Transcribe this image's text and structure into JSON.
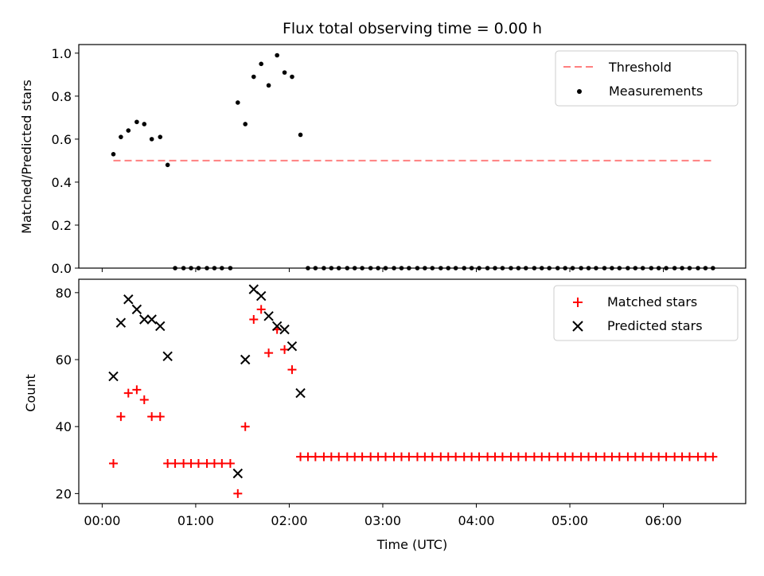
{
  "chart_data": [
    {
      "type": "scatter",
      "title": "Flux total observing time = 0.00 h",
      "xlabel": "",
      "ylabel": "Matched/Predicted stars",
      "xlim": [
        -0.25,
        6.88
      ],
      "ylim": [
        0.0,
        1.04
      ],
      "yticks": [
        "0.0",
        "0.2",
        "0.4",
        "0.6",
        "0.8",
        "1.0"
      ],
      "ytick_values": [
        0.0,
        0.2,
        0.4,
        0.6,
        0.8,
        1.0
      ],
      "legend": {
        "position": "upper right",
        "entries": [
          "Threshold",
          "Measurements"
        ]
      },
      "series": [
        {
          "name": "Threshold",
          "kind": "dashed-line",
          "color": "#ff8080",
          "x": [
            0.12,
            6.55
          ],
          "y": [
            0.5,
            0.5
          ]
        },
        {
          "name": "Measurements",
          "kind": "dot",
          "color": "#000000",
          "x": [
            0.12,
            0.2,
            0.28,
            0.37,
            0.45,
            0.53,
            0.62,
            0.7,
            0.78,
            0.87,
            0.95,
            1.03,
            1.12,
            1.2,
            1.28,
            1.37,
            1.45,
            1.53,
            1.62,
            1.7,
            1.78,
            1.87,
            1.95,
            2.03,
            2.12,
            2.2,
            2.28,
            2.37,
            2.45,
            2.53,
            2.62,
            2.7,
            2.78,
            2.87,
            2.95,
            3.03,
            3.12,
            3.2,
            3.28,
            3.37,
            3.45,
            3.53,
            3.62,
            3.7,
            3.78,
            3.87,
            3.95,
            4.03,
            4.12,
            4.2,
            4.28,
            4.37,
            4.45,
            4.53,
            4.62,
            4.7,
            4.78,
            4.87,
            4.95,
            5.03,
            5.12,
            5.2,
            5.28,
            5.37,
            5.45,
            5.53,
            5.62,
            5.7,
            5.78,
            5.87,
            5.95,
            6.03,
            6.12,
            6.2,
            6.28,
            6.37,
            6.45,
            6.53
          ],
          "y": [
            0.53,
            0.61,
            0.64,
            0.68,
            0.67,
            0.6,
            0.61,
            0.48,
            0,
            0,
            0,
            0,
            0,
            0,
            0,
            0,
            0.77,
            0.67,
            0.89,
            0.95,
            0.85,
            0.99,
            0.91,
            0.89,
            0.62,
            0,
            0,
            0,
            0,
            0,
            0,
            0,
            0,
            0,
            0,
            0,
            0,
            0,
            0,
            0,
            0,
            0,
            0,
            0,
            0,
            0,
            0,
            0,
            0,
            0,
            0,
            0,
            0,
            0,
            0,
            0,
            0,
            0,
            0,
            0,
            0,
            0,
            0,
            0,
            0,
            0,
            0,
            0,
            0,
            0,
            0,
            0,
            0,
            0,
            0,
            0,
            0,
            0
          ]
        }
      ]
    },
    {
      "type": "scatter",
      "title": "",
      "xlabel": "Time (UTC)",
      "ylabel": "Count",
      "xlim": [
        -0.25,
        6.88
      ],
      "ylim": [
        17.0,
        84.0
      ],
      "xticks": [
        "00:00",
        "01:00",
        "02:00",
        "03:00",
        "04:00",
        "05:00",
        "06:00"
      ],
      "xtick_values": [
        0,
        1,
        2,
        3,
        4,
        5,
        6
      ],
      "yticks": [
        "20",
        "40",
        "60",
        "80"
      ],
      "ytick_values": [
        20,
        40,
        60,
        80
      ],
      "legend": {
        "position": "upper right",
        "entries": [
          "Matched stars",
          "Predicted stars"
        ]
      },
      "series": [
        {
          "name": "Matched stars",
          "kind": "plus",
          "color": "#ff0000",
          "x": [
            0.12,
            0.2,
            0.28,
            0.37,
            0.45,
            0.53,
            0.62,
            0.7,
            0.78,
            0.87,
            0.95,
            1.03,
            1.12,
            1.2,
            1.28,
            1.37,
            1.45,
            1.53,
            1.62,
            1.7,
            1.78,
            1.87,
            1.95,
            2.03,
            2.12,
            2.2,
            2.28,
            2.37,
            2.45,
            2.53,
            2.62,
            2.7,
            2.78,
            2.87,
            2.95,
            3.03,
            3.12,
            3.2,
            3.28,
            3.37,
            3.45,
            3.53,
            3.62,
            3.7,
            3.78,
            3.87,
            3.95,
            4.03,
            4.12,
            4.2,
            4.28,
            4.37,
            4.45,
            4.53,
            4.62,
            4.7,
            4.78,
            4.87,
            4.95,
            5.03,
            5.12,
            5.2,
            5.28,
            5.37,
            5.45,
            5.53,
            5.62,
            5.7,
            5.78,
            5.87,
            5.95,
            6.03,
            6.12,
            6.2,
            6.28,
            6.37,
            6.45,
            6.53
          ],
          "y": [
            29,
            43,
            50,
            51,
            48,
            43,
            43,
            29,
            29,
            29,
            29,
            29,
            29,
            29,
            29,
            29,
            20,
            40,
            72,
            75,
            62,
            69,
            63,
            57,
            31,
            31,
            31,
            31,
            31,
            31,
            31,
            31,
            31,
            31,
            31,
            31,
            31,
            31,
            31,
            31,
            31,
            31,
            31,
            31,
            31,
            31,
            31,
            31,
            31,
            31,
            31,
            31,
            31,
            31,
            31,
            31,
            31,
            31,
            31,
            31,
            31,
            31,
            31,
            31,
            31,
            31,
            31,
            31,
            31,
            31,
            31,
            31,
            31,
            31,
            31,
            31,
            31,
            31
          ]
        },
        {
          "name": "Predicted stars",
          "kind": "x",
          "color": "#000000",
          "x": [
            0.12,
            0.2,
            0.28,
            0.37,
            0.45,
            0.53,
            0.62,
            0.7,
            1.45,
            1.53,
            1.62,
            1.7,
            1.78,
            1.87,
            1.95,
            2.03,
            2.12
          ],
          "y": [
            55,
            71,
            78,
            75,
            72,
            72,
            70,
            61,
            26,
            60,
            81,
            79,
            73,
            70,
            69,
            64,
            50
          ]
        }
      ]
    }
  ]
}
